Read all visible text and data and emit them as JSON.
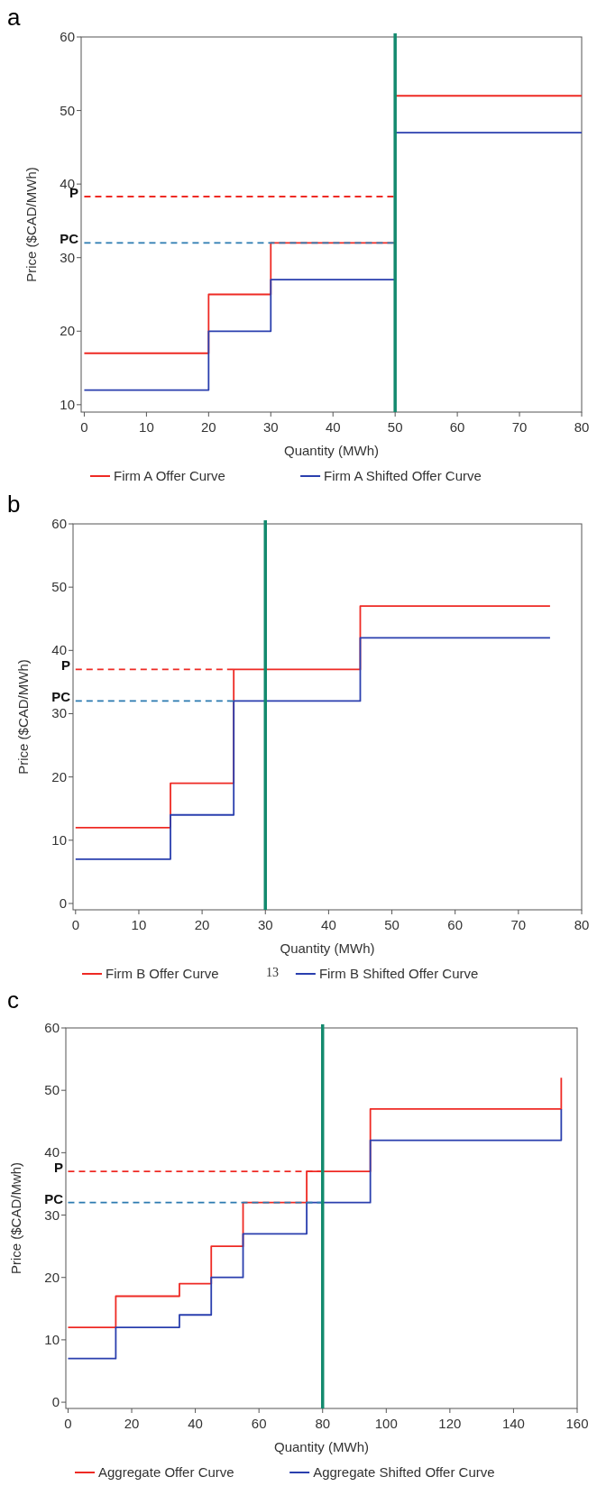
{
  "chart_data": [
    {
      "type": "step",
      "title": "a",
      "xlabel": "Quantity (MWh)",
      "ylabel": "Price ($CAD/MWh)",
      "xlim": [
        -0.5,
        80
      ],
      "ylim": [
        9,
        60
      ],
      "xticks": [
        0,
        10,
        20,
        30,
        40,
        50,
        60,
        70,
        80
      ],
      "yticks": [
        10,
        20,
        30,
        40,
        50,
        60
      ],
      "legend": "bottom",
      "grid": false,
      "series": [
        {
          "name": "Firm A Offer Curve",
          "color": "#ee2a24",
          "x": [
            0,
            20,
            30,
            50,
            80
          ],
          "values": [
            17,
            25,
            32,
            52,
            52
          ]
        },
        {
          "name": "Firm A Shifted Offer Curve",
          "color": "#2a3fae",
          "x": [
            0,
            20,
            30,
            50,
            80
          ],
          "values": [
            12,
            20,
            27,
            47,
            47
          ]
        },
        {
          "name": "P",
          "type": "line",
          "line_style": "dashed",
          "color": "#ee2a24",
          "x": [
            0,
            50
          ],
          "values": [
            38.3,
            38.3
          ]
        },
        {
          "name": "PC",
          "type": "line",
          "line_style": "dashed",
          "color": "#2a7ab0",
          "x": [
            0,
            50
          ],
          "values": [
            32,
            32
          ]
        }
      ],
      "ref_lines": [
        {
          "axis": "x",
          "value": 50,
          "color": "#138a6e"
        }
      ]
    },
    {
      "type": "step",
      "title": "b",
      "xlabel": "Quantity (MWh)",
      "ylabel": "Price ($CAD/MWh)",
      "xlim": [
        -0.4,
        80
      ],
      "ylim": [
        -1,
        60
      ],
      "xticks": [
        0,
        10,
        20,
        30,
        40,
        50,
        60,
        70,
        80
      ],
      "yticks": [
        0,
        10,
        20,
        30,
        40,
        50,
        60
      ],
      "legend": "bottom",
      "grid": false,
      "annotations": [
        "13"
      ],
      "series": [
        {
          "name": "Firm B Offer Curve",
          "color": "#ee2a24",
          "x": [
            0,
            15,
            25,
            45,
            75
          ],
          "values": [
            12,
            19,
            37,
            47,
            47
          ]
        },
        {
          "name": "Firm B Shifted Offer Curve",
          "color": "#2a3fae",
          "x": [
            0,
            15,
            25,
            45,
            75
          ],
          "values": [
            7,
            14,
            32,
            42,
            42
          ]
        },
        {
          "name": "P",
          "type": "line",
          "line_style": "dashed",
          "color": "#ee2a24",
          "x": [
            0,
            25
          ],
          "values": [
            37,
            37
          ]
        },
        {
          "name": "PC",
          "type": "line",
          "line_style": "dashed",
          "color": "#2a7ab0",
          "x": [
            0,
            25
          ],
          "values": [
            32,
            32
          ]
        }
      ],
      "ref_lines": [
        {
          "axis": "x",
          "value": 30,
          "color": "#138a6e"
        }
      ]
    },
    {
      "type": "step",
      "title": "c",
      "xlabel": "Quantity (MWh)",
      "ylabel": "Price ($CAD/Mwh)",
      "xlim": [
        -0.7,
        160
      ],
      "ylim": [
        -1,
        60
      ],
      "xticks": [
        0,
        20,
        40,
        60,
        80,
        100,
        120,
        140,
        160
      ],
      "yticks": [
        0,
        10,
        20,
        30,
        40,
        50,
        60
      ],
      "legend": "bottom",
      "grid": false,
      "series": [
        {
          "name": "Aggregate Offer Curve",
          "color": "#ee2a24",
          "x": [
            0,
            15,
            35,
            45,
            55,
            75,
            95,
            155,
            155
          ],
          "values": [
            12,
            17,
            19,
            25,
            32,
            37,
            47,
            47,
            52
          ]
        },
        {
          "name": "Aggregate Shifted Offer Curve",
          "color": "#2a3fae",
          "x": [
            0,
            15,
            35,
            45,
            55,
            75,
            95,
            155,
            155
          ],
          "values": [
            7,
            12,
            14,
            20,
            27,
            32,
            42,
            42,
            47
          ]
        },
        {
          "name": "P",
          "type": "line",
          "line_style": "dashed",
          "color": "#ee2a24",
          "x": [
            0,
            80
          ],
          "values": [
            37,
            37
          ]
        },
        {
          "name": "PC",
          "type": "line",
          "line_style": "dashed",
          "color": "#2a7ab0",
          "x": [
            0,
            80
          ],
          "values": [
            32,
            32
          ]
        }
      ],
      "ref_lines": [
        {
          "axis": "x",
          "value": 80,
          "color": "#138a6e"
        }
      ]
    }
  ]
}
